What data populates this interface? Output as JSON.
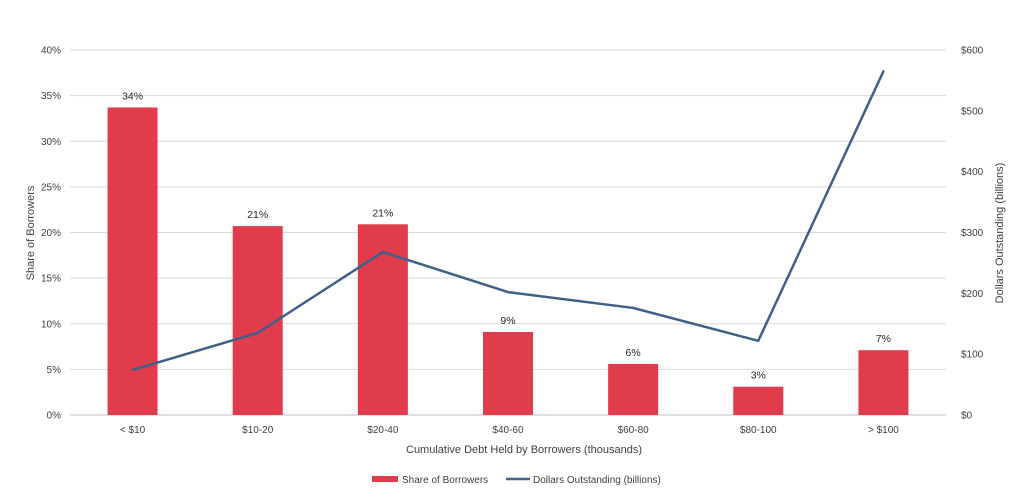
{
  "chart_data": {
    "type": "bar+line",
    "categories": [
      "< $10",
      "$10-20",
      "$20-40",
      "$40-60",
      "$60-80",
      "$80-100",
      "> $100"
    ],
    "xlabel": "Cumulative Debt Held by Borrowers (thousands)",
    "ylabel_left": "Share of Borrowers",
    "ylabel_right": "Dollars Outstanding (billions)",
    "y_left": {
      "min": 0,
      "max": 40,
      "step": 5,
      "tick_suffix": "%"
    },
    "y_right": {
      "min": 0,
      "max": 600,
      "step": 100,
      "tick_prefix": "$"
    },
    "grid": true,
    "legend_position": "bottom",
    "series": [
      {
        "name": "Share of Borrowers",
        "kind": "bar",
        "axis": "left",
        "color": "#E03C4B",
        "values": [
          33.7,
          20.7,
          20.9,
          9.1,
          5.6,
          3.1,
          7.1
        ],
        "data_labels": [
          "34%",
          "21%",
          "21%",
          "9%",
          "6%",
          "3%",
          "7%"
        ]
      },
      {
        "name": "Dollars Outstanding (billions)",
        "kind": "line",
        "axis": "right",
        "color": "#3F6088",
        "values": [
          74,
          135,
          268,
          202,
          176,
          122,
          565
        ]
      }
    ]
  }
}
